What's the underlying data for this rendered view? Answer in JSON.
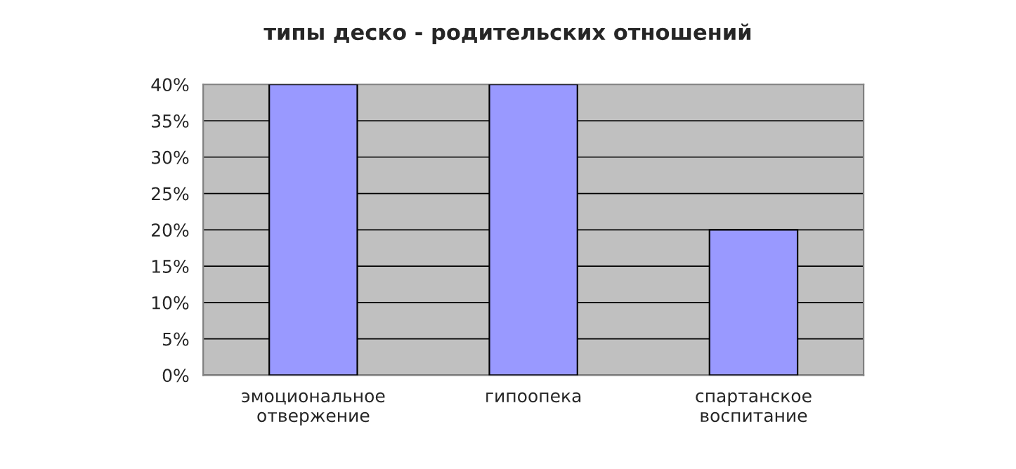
{
  "chart_data": {
    "type": "bar",
    "title": "типы деско - родительских отношений",
    "categories": [
      "эмоциональное\nотвержение",
      "гипоопека",
      "спартанское\nвоспитание"
    ],
    "values": [
      40,
      40,
      20
    ],
    "color": "#9999ff",
    "ylim": [
      0,
      40
    ],
    "yticks": [
      {
        "value": 0,
        "label": "0%"
      },
      {
        "value": 5,
        "label": "5%"
      },
      {
        "value": 10,
        "label": "10%"
      },
      {
        "value": 15,
        "label": "15%"
      },
      {
        "value": 20,
        "label": "20%"
      },
      {
        "value": 25,
        "label": "25%"
      },
      {
        "value": 30,
        "label": "30%"
      },
      {
        "value": 35,
        "label": "35%"
      },
      {
        "value": 40,
        "label": "40%"
      }
    ],
    "grid": "y"
  }
}
